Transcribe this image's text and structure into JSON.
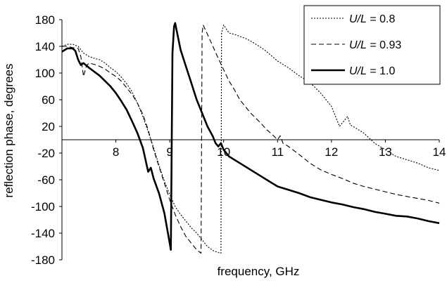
{
  "chart_data": {
    "type": "line",
    "title": "",
    "xlabel": "frequency, GHz",
    "ylabel": "reflection phase, degrees",
    "xlim": [
      7.0,
      14.0
    ],
    "ylim": [
      -180,
      180
    ],
    "x_ticks": [
      "8",
      "9",
      "10",
      "11",
      "12",
      "13",
      "14"
    ],
    "y_ticks": [
      "180",
      "140",
      "100",
      "60",
      "20",
      "-20",
      "-60",
      "-100",
      "-140",
      "-180"
    ],
    "grid": false,
    "legend_position": "top-right",
    "series": [
      {
        "name": "U/L = 0.8",
        "legend_prefix": "U/L",
        "legend_suffix": " = 0.8",
        "style": "dotted",
        "points": [
          [
            7.0,
            140
          ],
          [
            7.1,
            143
          ],
          [
            7.2,
            143
          ],
          [
            7.3,
            140
          ],
          [
            7.4,
            130
          ],
          [
            7.5,
            125
          ],
          [
            7.6,
            122
          ],
          [
            7.7,
            120
          ],
          [
            7.8,
            115
          ],
          [
            7.9,
            108
          ],
          [
            8.0,
            102
          ],
          [
            8.1,
            94
          ],
          [
            8.2,
            84
          ],
          [
            8.3,
            72
          ],
          [
            8.4,
            55
          ],
          [
            8.5,
            35
          ],
          [
            8.6,
            12
          ],
          [
            8.7,
            -12
          ],
          [
            8.8,
            -38
          ],
          [
            8.9,
            -62
          ],
          [
            9.0,
            -82
          ],
          [
            9.1,
            -100
          ],
          [
            9.2,
            -112
          ],
          [
            9.3,
            -122
          ],
          [
            9.4,
            -132
          ],
          [
            9.5,
            -140
          ],
          [
            9.6,
            -150
          ],
          [
            9.7,
            -160
          ],
          [
            9.8,
            -166
          ],
          [
            9.9,
            -169
          ],
          [
            9.95,
            -170
          ],
          [
            9.96,
            160
          ],
          [
            10.0,
            172
          ],
          [
            10.1,
            160
          ],
          [
            10.2,
            158
          ],
          [
            10.3,
            155
          ],
          [
            10.4,
            152
          ],
          [
            10.5,
            148
          ],
          [
            10.6,
            143
          ],
          [
            10.7,
            138
          ],
          [
            10.8,
            132
          ],
          [
            10.9,
            125
          ],
          [
            11.0,
            118
          ],
          [
            11.2,
            108
          ],
          [
            11.4,
            96
          ],
          [
            11.6,
            86
          ],
          [
            11.8,
            70
          ],
          [
            12.0,
            50
          ],
          [
            12.1,
            30
          ],
          [
            12.15,
            20
          ],
          [
            12.2,
            25
          ],
          [
            12.25,
            30
          ],
          [
            12.3,
            35
          ],
          [
            12.35,
            22
          ],
          [
            12.4,
            20
          ],
          [
            12.6,
            10
          ],
          [
            12.8,
            -5
          ],
          [
            13.0,
            -15
          ],
          [
            13.2,
            -25
          ],
          [
            13.4,
            -30
          ],
          [
            13.6,
            -35
          ],
          [
            13.8,
            -42
          ],
          [
            14.0,
            -46
          ]
        ]
      },
      {
        "name": "U/L = 0.93",
        "legend_prefix": "U/L",
        "legend_suffix": " = 0.93",
        "style": "dashed",
        "points": [
          [
            7.0,
            140
          ],
          [
            7.1,
            140
          ],
          [
            7.2,
            138
          ],
          [
            7.3,
            137
          ],
          [
            7.35,
            125
          ],
          [
            7.4,
            95
          ],
          [
            7.45,
            110
          ],
          [
            7.5,
            115
          ],
          [
            7.6,
            113
          ],
          [
            7.7,
            110
          ],
          [
            7.8,
            106
          ],
          [
            7.9,
            100
          ],
          [
            8.0,
            95
          ],
          [
            8.1,
            88
          ],
          [
            8.2,
            78
          ],
          [
            8.3,
            68
          ],
          [
            8.4,
            55
          ],
          [
            8.5,
            38
          ],
          [
            8.6,
            15
          ],
          [
            8.7,
            -15
          ],
          [
            8.8,
            -40
          ],
          [
            8.9,
            -65
          ],
          [
            9.0,
            -90
          ],
          [
            9.1,
            -112
          ],
          [
            9.2,
            -130
          ],
          [
            9.3,
            -145
          ],
          [
            9.4,
            -155
          ],
          [
            9.5,
            -165
          ],
          [
            9.58,
            -170
          ],
          [
            9.6,
            160
          ],
          [
            9.62,
            172
          ],
          [
            9.7,
            158
          ],
          [
            9.8,
            140
          ],
          [
            9.9,
            122
          ],
          [
            10.0,
            105
          ],
          [
            10.1,
            88
          ],
          [
            10.2,
            75
          ],
          [
            10.3,
            60
          ],
          [
            10.4,
            50
          ],
          [
            10.5,
            40
          ],
          [
            10.6,
            32
          ],
          [
            10.7,
            24
          ],
          [
            10.8,
            15
          ],
          [
            10.9,
            8
          ],
          [
            11.0,
            0
          ],
          [
            11.05,
            6
          ],
          [
            11.1,
            -5
          ],
          [
            11.2,
            -10
          ],
          [
            11.4,
            -22
          ],
          [
            11.6,
            -35
          ],
          [
            11.8,
            -45
          ],
          [
            12.0,
            -52
          ],
          [
            12.2,
            -58
          ],
          [
            12.4,
            -65
          ],
          [
            12.6,
            -70
          ],
          [
            12.8,
            -74
          ],
          [
            13.0,
            -78
          ],
          [
            13.2,
            -82
          ],
          [
            13.4,
            -85
          ],
          [
            13.6,
            -88
          ],
          [
            13.8,
            -91
          ],
          [
            14.0,
            -95
          ]
        ]
      },
      {
        "name": "U/L = 1.0",
        "legend_prefix": "U/L",
        "legend_suffix": " = 1.0",
        "style": "solid",
        "points": [
          [
            7.0,
            132
          ],
          [
            7.1,
            137
          ],
          [
            7.2,
            137
          ],
          [
            7.25,
            133
          ],
          [
            7.3,
            120
          ],
          [
            7.35,
            112
          ],
          [
            7.4,
            115
          ],
          [
            7.5,
            108
          ],
          [
            7.6,
            102
          ],
          [
            7.7,
            96
          ],
          [
            7.8,
            88
          ],
          [
            7.9,
            80
          ],
          [
            8.0,
            70
          ],
          [
            8.1,
            58
          ],
          [
            8.2,
            45
          ],
          [
            8.3,
            28
          ],
          [
            8.4,
            10
          ],
          [
            8.5,
            -12
          ],
          [
            8.55,
            -30
          ],
          [
            8.6,
            -48
          ],
          [
            8.65,
            -42
          ],
          [
            8.7,
            -58
          ],
          [
            8.8,
            -80
          ],
          [
            8.9,
            -110
          ],
          [
            9.0,
            -155
          ],
          [
            9.02,
            -165
          ],
          [
            9.05,
            130
          ],
          [
            9.08,
            170
          ],
          [
            9.1,
            175
          ],
          [
            9.2,
            135
          ],
          [
            9.3,
            110
          ],
          [
            9.4,
            85
          ],
          [
            9.5,
            60
          ],
          [
            9.6,
            40
          ],
          [
            9.7,
            20
          ],
          [
            9.8,
            5
          ],
          [
            9.85,
            -5
          ],
          [
            9.9,
            -10
          ],
          [
            9.95,
            -5
          ],
          [
            10.0,
            -15
          ],
          [
            10.1,
            -25
          ],
          [
            10.3,
            -35
          ],
          [
            10.5,
            -45
          ],
          [
            10.7,
            -55
          ],
          [
            10.9,
            -65
          ],
          [
            11.0,
            -70
          ],
          [
            11.2,
            -75
          ],
          [
            11.4,
            -80
          ],
          [
            11.6,
            -86
          ],
          [
            11.8,
            -90
          ],
          [
            12.0,
            -94
          ],
          [
            12.2,
            -97
          ],
          [
            12.4,
            -101
          ],
          [
            12.6,
            -104
          ],
          [
            12.8,
            -108
          ],
          [
            13.0,
            -111
          ],
          [
            13.2,
            -114
          ],
          [
            13.4,
            -115
          ],
          [
            13.6,
            -118
          ],
          [
            13.8,
            -122
          ],
          [
            14.0,
            -125
          ]
        ]
      }
    ]
  }
}
